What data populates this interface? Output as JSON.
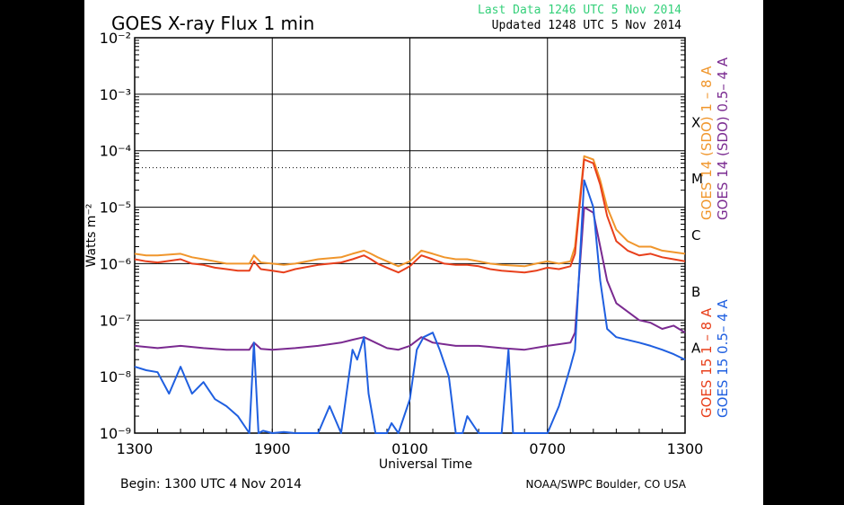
{
  "header": {
    "title": "GOES X-ray Flux 1 min",
    "last_data": "Last Data 1246 UTC  5 Nov 2014",
    "updated": "Updated 1248 UTC  5 Nov 2014"
  },
  "footer": {
    "begin": "Begin: 1300 UTC  4 Nov 2014",
    "credit": "NOAA/SWPC Boulder, CO USA"
  },
  "colors": {
    "goes15_long": "#e8401c",
    "goes15_short": "#1f5fe0",
    "goes14_long": "#f0962c",
    "goes14_short": "#7a2a90",
    "last_data": "#35d07a",
    "grid": "#000000"
  },
  "chart_data": {
    "type": "line",
    "title": "GOES X-ray Flux 1 min",
    "xlabel": "Universal Time",
    "ylabel": "Watts m⁻²",
    "y_scale": "log",
    "ylim": [
      1e-09,
      0.01
    ],
    "y_ticks": [
      {
        "v": 1e-09,
        "label": "10⁻⁹"
      },
      {
        "v": 1e-08,
        "label": "10⁻⁸"
      },
      {
        "v": 1e-07,
        "label": "10⁻⁷"
      },
      {
        "v": 1e-06,
        "label": "10⁻⁶"
      },
      {
        "v": 1e-05,
        "label": "10⁻⁵"
      },
      {
        "v": 0.0001,
        "label": "10⁻⁴"
      },
      {
        "v": 0.001,
        "label": "10⁻³"
      },
      {
        "v": 0.01,
        "label": "10⁻²"
      }
    ],
    "x_start": "2014-11-04 13:00 UTC",
    "x_ticks": [
      "1300",
      "1900",
      "0100",
      "0700",
      "1300"
    ],
    "x_tick_hours": [
      13,
      19,
      25,
      31,
      37
    ],
    "xlim_hours": [
      13,
      37
    ],
    "flare_classes": [
      {
        "label": "X",
        "v": 0.0001
      },
      {
        "label": "M",
        "v": 1e-05
      },
      {
        "label": "C",
        "v": 1e-06
      },
      {
        "label": "B",
        "v": 1e-07
      },
      {
        "label": "A",
        "v": 1e-08
      }
    ],
    "threshold_line": {
      "v": 5e-05,
      "style": "dotted"
    },
    "grid": true,
    "legend": [
      {
        "label": "GOES 14 (SDO) 1 – 8 A",
        "color": "#f0962c"
      },
      {
        "label": "GOES 14 (SDO) 0.5– 4 A",
        "color": "#7a2a90"
      },
      {
        "label": "GOES 15 1 – 8 A",
        "color": "#e8401c"
      },
      {
        "label": "GOES 15 0.5– 4 A",
        "color": "#1f5fe0"
      }
    ],
    "series": [
      {
        "name": "GOES 14 (SDO) 1 – 8 A",
        "color": "#f0962c",
        "x": [
          13,
          13.5,
          14,
          15,
          15.5,
          16,
          16.5,
          17,
          17.5,
          18,
          18.2,
          18.5,
          19,
          19.5,
          20,
          21,
          22,
          22.5,
          23,
          23.3,
          23.6,
          24,
          24.5,
          25,
          25.5,
          26,
          26.5,
          27,
          27.5,
          28,
          28.5,
          29,
          30,
          30.5,
          31,
          31.5,
          32,
          32.2,
          32.6,
          33,
          33.3,
          33.6,
          34,
          34.5,
          35,
          35.5,
          36,
          36.5,
          37
        ],
        "y": [
          1.5e-06,
          1.4e-06,
          1.4e-06,
          1.5e-06,
          1.3e-06,
          1.2e-06,
          1.1e-06,
          1e-06,
          1e-06,
          1e-06,
          1.4e-06,
          1.05e-06,
          1e-06,
          9.5e-07,
          1e-06,
          1.2e-06,
          1.3e-06,
          1.5e-06,
          1.7e-06,
          1.5e-06,
          1.3e-06,
          1.1e-06,
          9e-07,
          1.1e-06,
          1.7e-06,
          1.5e-06,
          1.3e-06,
          1.2e-06,
          1.2e-06,
          1.1e-06,
          1e-06,
          9.5e-07,
          9e-07,
          1e-06,
          1.1e-06,
          1e-06,
          1.1e-06,
          2e-06,
          8e-05,
          7e-05,
          3e-05,
          1e-05,
          4e-06,
          2.5e-06,
          2e-06,
          2e-06,
          1.7e-06,
          1.6e-06,
          1.5e-06
        ]
      },
      {
        "name": "GOES 15 1 – 8 A",
        "color": "#e8401c",
        "x": [
          13,
          13.5,
          14,
          15,
          15.5,
          16,
          16.5,
          17,
          17.5,
          18,
          18.2,
          18.5,
          19,
          19.5,
          20,
          21,
          22,
          22.5,
          23,
          23.3,
          23.6,
          24,
          24.5,
          25,
          25.5,
          26,
          26.5,
          27,
          27.5,
          28,
          28.5,
          29,
          30,
          30.5,
          31,
          31.5,
          32,
          32.2,
          32.6,
          33,
          33.3,
          33.6,
          34,
          34.5,
          35,
          35.5,
          36,
          36.5,
          37
        ],
        "y": [
          1.2e-06,
          1.1e-06,
          1.05e-06,
          1.2e-06,
          1e-06,
          9.5e-07,
          8.5e-07,
          8e-07,
          7.5e-07,
          7.5e-07,
          1.1e-06,
          8e-07,
          7.5e-07,
          7e-07,
          8e-07,
          9.5e-07,
          1.05e-06,
          1.2e-06,
          1.4e-06,
          1.2e-06,
          1e-06,
          8.5e-07,
          7e-07,
          9e-07,
          1.4e-06,
          1.2e-06,
          1e-06,
          9.5e-07,
          9.5e-07,
          9e-07,
          8e-07,
          7.5e-07,
          7e-07,
          7.5e-07,
          8.5e-07,
          8e-07,
          9e-07,
          1.5e-06,
          7e-05,
          6e-05,
          2.5e-05,
          7e-06,
          2.5e-06,
          1.7e-06,
          1.4e-06,
          1.5e-06,
          1.3e-06,
          1.2e-06,
          1.1e-06
        ]
      },
      {
        "name": "GOES 14 (SDO) 0.5– 4 A",
        "color": "#7a2a90",
        "x": [
          13,
          14,
          15,
          16,
          17,
          18,
          18.2,
          18.5,
          19,
          20,
          21,
          22,
          22.5,
          23,
          23.5,
          24,
          24.5,
          25,
          25.5,
          26,
          27,
          28,
          29,
          30,
          31,
          32,
          32.2,
          32.6,
          33,
          33.3,
          33.6,
          34,
          35,
          35.5,
          36,
          36.5,
          37
        ],
        "y": [
          3.5e-08,
          3.2e-08,
          3.5e-08,
          3.2e-08,
          3e-08,
          3e-08,
          4e-08,
          3.1e-08,
          3e-08,
          3.2e-08,
          3.5e-08,
          4e-08,
          4.5e-08,
          5e-08,
          4e-08,
          3.2e-08,
          3e-08,
          3.5e-08,
          5e-08,
          4e-08,
          3.5e-08,
          3.5e-08,
          3.2e-08,
          3e-08,
          3.5e-08,
          4e-08,
          6e-08,
          1e-05,
          8e-06,
          2e-06,
          5e-07,
          2e-07,
          1e-07,
          9e-08,
          7e-08,
          8e-08,
          6e-08
        ]
      },
      {
        "name": "GOES 15 0.5– 4 A",
        "color": "#1f5fe0",
        "x": [
          13,
          13.5,
          14,
          14.5,
          15,
          15.5,
          16,
          16.5,
          17,
          17.5,
          18,
          18.2,
          18.4,
          18.6,
          19,
          19.5,
          20,
          20.5,
          21,
          21.5,
          22,
          22.5,
          22.7,
          23,
          23.2,
          23.5,
          24,
          24.2,
          24.5,
          25,
          25.3,
          25.6,
          26,
          26.3,
          26.7,
          27,
          27.3,
          27.5,
          28,
          28.5,
          29,
          29.3,
          29.5,
          30,
          30.5,
          31,
          31.5,
          32,
          32.2,
          32.6,
          33,
          33.3,
          33.6,
          34,
          35,
          35.5,
          36,
          36.5,
          37
        ],
        "y": [
          1.5e-08,
          1.3e-08,
          1.2e-08,
          5e-09,
          1.5e-08,
          5e-09,
          8e-09,
          4e-09,
          3e-09,
          2e-09,
          1e-09,
          4e-08,
          1e-09,
          1.1e-09,
          1e-09,
          1.05e-09,
          1e-09,
          1e-09,
          1e-09,
          3e-09,
          1e-09,
          3e-08,
          2e-08,
          5e-08,
          5e-09,
          1e-09,
          1e-09,
          1.5e-09,
          1e-09,
          4e-09,
          3e-08,
          5e-08,
          6e-08,
          3e-08,
          1e-08,
          1e-09,
          1e-09,
          2e-09,
          1e-09,
          1e-09,
          1e-09,
          3e-08,
          1e-09,
          1e-09,
          1e-09,
          1e-09,
          3e-09,
          1.5e-08,
          3e-08,
          3e-05,
          1e-05,
          5e-07,
          7e-08,
          5e-08,
          4e-08,
          3.5e-08,
          3e-08,
          2.5e-08,
          2e-08
        ]
      }
    ]
  }
}
